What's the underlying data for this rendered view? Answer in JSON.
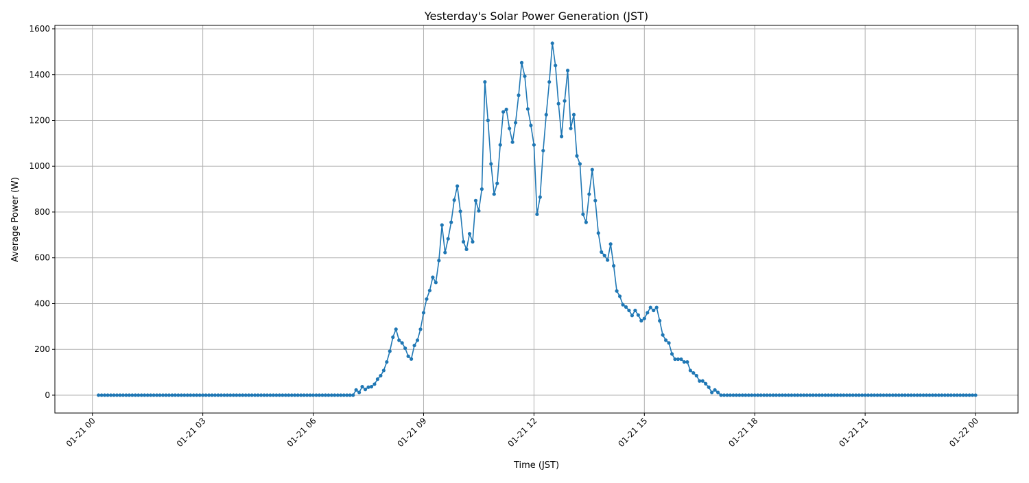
{
  "chart_data": {
    "type": "line",
    "title": "Yesterday's Solar Power Generation (JST)",
    "xlabel": "Time (JST)",
    "ylabel": "Average Power (W)",
    "x_start": "01-21 00:10",
    "x_step_minutes": 5,
    "x_ticks": [
      "01-21 00",
      "01-21 03",
      "01-21 06",
      "01-21 09",
      "01-21 12",
      "01-21 15",
      "01-21 18",
      "01-21 21",
      "01-22 00"
    ],
    "y_ticks": [
      0,
      200,
      400,
      600,
      800,
      1000,
      1200,
      1400,
      1600
    ],
    "ylim": [
      -78,
      1615
    ],
    "grid": true,
    "marker": "circle",
    "color": "#1f77b4",
    "values": [
      0,
      0,
      0,
      0,
      0,
      0,
      0,
      0,
      0,
      0,
      0,
      0,
      0,
      0,
      0,
      0,
      0,
      0,
      0,
      0,
      0,
      0,
      0,
      0,
      0,
      0,
      0,
      0,
      0,
      0,
      0,
      0,
      0,
      0,
      0,
      0,
      0,
      0,
      0,
      0,
      0,
      0,
      0,
      0,
      0,
      0,
      0,
      0,
      0,
      0,
      0,
      0,
      0,
      0,
      0,
      0,
      0,
      0,
      0,
      0,
      0,
      0,
      0,
      0,
      0,
      0,
      0,
      0,
      0,
      0,
      0,
      0,
      0,
      0,
      0,
      0,
      0,
      0,
      0,
      0,
      0,
      0,
      0,
      0,
      23,
      12,
      37,
      25,
      35,
      37,
      48,
      70,
      85,
      108,
      145,
      192,
      253,
      288,
      240,
      228,
      205,
      170,
      158,
      217,
      240,
      288,
      360,
      420,
      457,
      515,
      492,
      588,
      743,
      623,
      683,
      755,
      852,
      913,
      803,
      670,
      637,
      705,
      670,
      850,
      805,
      900,
      1368,
      1200,
      1010,
      878,
      925,
      1093,
      1237,
      1248,
      1165,
      1105,
      1190,
      1310,
      1452,
      1393,
      1250,
      1178,
      1093,
      790,
      865,
      1068,
      1225,
      1368,
      1537,
      1440,
      1273,
      1130,
      1285,
      1418,
      1165,
      1225,
      1045,
      1010,
      790,
      755,
      878,
      985,
      850,
      708,
      625,
      610,
      590,
      660,
      565,
      455,
      432,
      395,
      385,
      370,
      348,
      370,
      350,
      325,
      335,
      360,
      383,
      370,
      383,
      325,
      263,
      240,
      228,
      180,
      157,
      157,
      157,
      145,
      145,
      108,
      97,
      85,
      62,
      62,
      50,
      35,
      12,
      23,
      12,
      0,
      0,
      0,
      0,
      0,
      0,
      0,
      0,
      0,
      0,
      0,
      0,
      0,
      0,
      0,
      0,
      0,
      0,
      0,
      0,
      0,
      0,
      0,
      0,
      0,
      0,
      0,
      0,
      0,
      0,
      0,
      0,
      0,
      0,
      0,
      0,
      0,
      0,
      0,
      0,
      0,
      0,
      0,
      0,
      0,
      0,
      0,
      0,
      0,
      0,
      0,
      0,
      0,
      0,
      0,
      0,
      0,
      0,
      0,
      0,
      0,
      0,
      0,
      0,
      0,
      0,
      0,
      0,
      0,
      0,
      0,
      0,
      0,
      0,
      0,
      0,
      0,
      0,
      0,
      0,
      0,
      0,
      0,
      0
    ]
  }
}
